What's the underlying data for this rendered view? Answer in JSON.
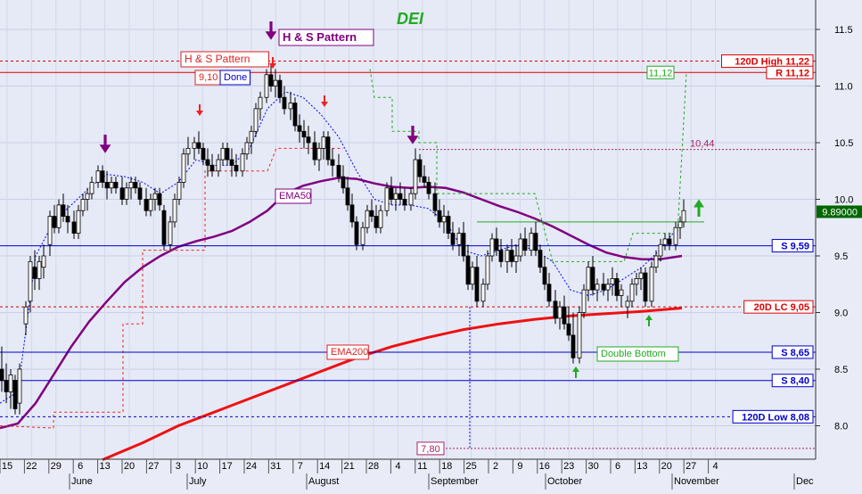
{
  "chart_data": {
    "type": "candlestick",
    "title": "DEI",
    "ylim": [
      7.7,
      11.75
    ],
    "y_ticks": [
      "11.5",
      "11.0",
      "10.5",
      "10.0",
      "9.5",
      "9.0",
      "8.5",
      "8.0"
    ],
    "last_price": "9.89000",
    "x_day_ticks": [
      "15",
      "22",
      "29",
      "6",
      "13",
      "20",
      "27",
      "3",
      "10",
      "17",
      "24",
      "31",
      "7",
      "14",
      "21",
      "28",
      "4",
      "11",
      "18",
      "25",
      "2",
      "9",
      "16",
      "23",
      "30",
      "6",
      "13",
      "20",
      "27",
      "4"
    ],
    "x_month_labels": [
      "June",
      "July",
      "August",
      "September",
      "October",
      "November",
      "Dec"
    ],
    "horizontal_levels": [
      {
        "label": "120D High 11,22",
        "value": 11.22,
        "color": "#dd0000",
        "style": "dashed"
      },
      {
        "label": "R 11,12",
        "value": 11.12,
        "color": "#dd0000",
        "style": "solid"
      },
      {
        "label": "S 9,59",
        "value": 9.59,
        "color": "#0000cc",
        "style": "solid"
      },
      {
        "label": "20D LC 9,05",
        "value": 9.05,
        "color": "#dd0000",
        "style": "dashed"
      },
      {
        "label": "S 8,65",
        "value": 8.65,
        "color": "#0000cc",
        "style": "solid"
      },
      {
        "label": "S 8,40",
        "value": 8.4,
        "color": "#0000cc",
        "style": "solid"
      },
      {
        "label": "120D Low 8,08",
        "value": 8.08,
        "color": "#0000cc",
        "style": "dashed"
      }
    ],
    "level_value_labels": [
      {
        "label": "11,12",
        "value": 11.12
      },
      {
        "label": "10,44",
        "value": 10.44
      },
      {
        "label": "7,80",
        "value": 7.8
      }
    ],
    "annotations": [
      "H & S Pattern",
      "H & S Pattern",
      "9,10",
      "Done",
      "EMA50",
      "EMA200",
      "Double Bottom"
    ],
    "series": [
      {
        "name": "EMA50",
        "color": "#800080",
        "x": [
          0,
          20,
          40,
          60,
          80,
          100,
          120,
          140,
          160,
          180,
          200,
          220,
          240,
          260,
          280,
          300,
          320,
          340,
          360,
          380,
          400,
          420,
          440,
          460,
          480,
          500,
          520,
          540,
          560,
          580,
          600,
          620,
          640,
          660,
          680,
          700,
          720,
          740,
          765
        ],
        "values": [
          7.98,
          8.02,
          8.2,
          8.45,
          8.7,
          8.92,
          9.1,
          9.27,
          9.4,
          9.5,
          9.58,
          9.63,
          9.67,
          9.72,
          9.8,
          9.9,
          10.05,
          10.12,
          10.16,
          10.19,
          10.18,
          10.14,
          10.11,
          10.1,
          10.11,
          10.1,
          10.06,
          10.0,
          9.94,
          9.89,
          9.83,
          9.76,
          9.68,
          9.6,
          9.53,
          9.49,
          9.47,
          9.47,
          9.5
        ]
      },
      {
        "name": "EMA200",
        "color": "#ee1111",
        "x": [
          115,
          160,
          200,
          240,
          280,
          320,
          360,
          400,
          440,
          480,
          520,
          560,
          600,
          640,
          680,
          720,
          765
        ],
        "values": [
          7.7,
          7.85,
          8.0,
          8.12,
          8.24,
          8.36,
          8.48,
          8.6,
          8.7,
          8.78,
          8.85,
          8.9,
          8.94,
          8.97,
          8.99,
          9.01,
          9.04
        ]
      },
      {
        "name": "",
        "color": "#0000ff",
        "style": "dotted",
        "x": [
          0,
          20,
          30,
          40,
          60,
          80,
          100,
          120,
          140,
          160,
          180,
          200,
          220,
          240,
          260,
          280,
          300,
          320,
          340,
          360,
          380,
          400,
          420,
          440,
          460,
          480,
          500,
          520,
          540,
          560,
          580,
          600,
          620,
          640,
          660,
          680,
          700,
          720,
          740,
          760
        ],
        "values": [
          8.2,
          8.3,
          8.9,
          9.5,
          9.8,
          9.95,
          10.1,
          10.22,
          10.2,
          10.15,
          10.05,
          10.15,
          10.35,
          10.3,
          10.3,
          10.45,
          10.8,
          10.95,
          10.9,
          10.75,
          10.55,
          10.25,
          10.0,
          9.95,
          9.95,
          9.92,
          9.8,
          9.55,
          9.5,
          9.55,
          9.6,
          9.55,
          9.45,
          9.2,
          9.15,
          9.2,
          9.3,
          9.4,
          9.55,
          9.75
        ]
      }
    ],
    "candles": [
      [
        0,
        8.5,
        8.7,
        8.3,
        8.4
      ],
      [
        5,
        8.4,
        8.55,
        8.2,
        8.3
      ],
      [
        10,
        8.3,
        8.5,
        8.15,
        8.45
      ],
      [
        15,
        8.4,
        8.45,
        8.1,
        8.15
      ],
      [
        20,
        8.2,
        8.55,
        8.1,
        8.5
      ],
      [
        27,
        8.9,
        9.1,
        8.8,
        9.05
      ],
      [
        32,
        9.1,
        9.5,
        9.0,
        9.45
      ],
      [
        37,
        9.4,
        9.55,
        9.2,
        9.3
      ],
      [
        42,
        9.3,
        9.5,
        9.2,
        9.45
      ],
      [
        47,
        9.4,
        9.6,
        9.3,
        9.5
      ],
      [
        54,
        9.6,
        9.9,
        9.5,
        9.85
      ],
      [
        59,
        9.85,
        9.95,
        9.7,
        9.75
      ],
      [
        64,
        9.75,
        10.0,
        9.7,
        9.95
      ],
      [
        69,
        9.95,
        10.05,
        9.8,
        9.85
      ],
      [
        74,
        9.85,
        9.95,
        9.7,
        9.8
      ],
      [
        81,
        9.8,
        9.9,
        9.65,
        9.7
      ],
      [
        86,
        9.7,
        9.95,
        9.65,
        9.9
      ],
      [
        91,
        9.9,
        10.05,
        9.85,
        10.0
      ],
      [
        96,
        10.0,
        10.1,
        9.9,
        10.05
      ],
      [
        101,
        10.05,
        10.2,
        10.0,
        10.15
      ],
      [
        108,
        10.15,
        10.3,
        10.1,
        10.25
      ],
      [
        113,
        10.25,
        10.3,
        10.1,
        10.15
      ],
      [
        118,
        10.15,
        10.25,
        10.0,
        10.1
      ],
      [
        123,
        10.1,
        10.2,
        10.05,
        10.15
      ],
      [
        128,
        10.15,
        10.2,
        10.05,
        10.1
      ],
      [
        135,
        10.1,
        10.2,
        9.95,
        10.0
      ],
      [
        140,
        10.0,
        10.15,
        9.95,
        10.1
      ],
      [
        145,
        10.1,
        10.2,
        10.0,
        10.15
      ],
      [
        150,
        10.15,
        10.2,
        10.05,
        10.1
      ],
      [
        155,
        10.1,
        10.15,
        9.95,
        10.0
      ],
      [
        162,
        10.0,
        10.1,
        9.85,
        9.9
      ],
      [
        167,
        9.9,
        10.05,
        9.85,
        10.0
      ],
      [
        172,
        10.0,
        10.1,
        9.9,
        10.05
      ],
      [
        177,
        10.05,
        10.1,
        9.9,
        9.95
      ],
      [
        182,
        9.9,
        9.95,
        9.55,
        9.6
      ],
      [
        189,
        9.6,
        9.85,
        9.55,
        9.8
      ],
      [
        194,
        9.8,
        10.05,
        9.75,
        10.0
      ],
      [
        199,
        10.0,
        10.2,
        9.95,
        10.15
      ],
      [
        204,
        10.15,
        10.45,
        10.1,
        10.4
      ],
      [
        209,
        10.4,
        10.55,
        10.3,
        10.45
      ],
      [
        216,
        10.45,
        10.55,
        10.35,
        10.5
      ],
      [
        221,
        10.5,
        10.6,
        10.4,
        10.45
      ],
      [
        226,
        10.45,
        10.5,
        10.3,
        10.35
      ],
      [
        231,
        10.35,
        10.45,
        10.2,
        10.3
      ],
      [
        236,
        10.3,
        10.4,
        10.2,
        10.25
      ],
      [
        243,
        10.25,
        10.4,
        10.2,
        10.35
      ],
      [
        248,
        10.35,
        10.5,
        10.3,
        10.45
      ],
      [
        253,
        10.45,
        10.5,
        10.3,
        10.35
      ],
      [
        258,
        10.35,
        10.45,
        10.2,
        10.3
      ],
      [
        263,
        10.3,
        10.4,
        10.2,
        10.25
      ],
      [
        270,
        10.25,
        10.45,
        10.2,
        10.4
      ],
      [
        275,
        10.4,
        10.55,
        10.35,
        10.5
      ],
      [
        280,
        10.5,
        10.65,
        10.4,
        10.6
      ],
      [
        285,
        10.6,
        10.85,
        10.55,
        10.8
      ],
      [
        290,
        10.8,
        10.95,
        10.7,
        10.9
      ],
      [
        297,
        10.9,
        11.15,
        10.85,
        11.1
      ],
      [
        302,
        11.1,
        11.2,
        10.95,
        11.0
      ],
      [
        307,
        11.0,
        11.15,
        10.9,
        11.05
      ],
      [
        312,
        11.05,
        11.1,
        10.85,
        10.9
      ],
      [
        317,
        10.9,
        11.0,
        10.75,
        10.8
      ],
      [
        324,
        10.8,
        10.95,
        10.7,
        10.85
      ],
      [
        329,
        10.85,
        10.9,
        10.6,
        10.65
      ],
      [
        334,
        10.65,
        10.75,
        10.5,
        10.6
      ],
      [
        339,
        10.6,
        10.7,
        10.45,
        10.55
      ],
      [
        344,
        10.55,
        10.65,
        10.4,
        10.5
      ],
      [
        351,
        10.5,
        10.6,
        10.3,
        10.35
      ],
      [
        356,
        10.35,
        10.5,
        10.25,
        10.45
      ],
      [
        361,
        10.45,
        10.6,
        10.35,
        10.55
      ],
      [
        366,
        10.55,
        10.6,
        10.3,
        10.35
      ],
      [
        371,
        10.35,
        10.45,
        10.2,
        10.3
      ],
      [
        378,
        10.3,
        10.4,
        10.15,
        10.2
      ],
      [
        383,
        10.2,
        10.3,
        10.05,
        10.1
      ],
      [
        388,
        10.1,
        10.2,
        9.9,
        9.95
      ],
      [
        393,
        9.95,
        10.05,
        9.75,
        9.8
      ],
      [
        398,
        9.8,
        9.85,
        9.55,
        9.6
      ],
      [
        405,
        9.6,
        9.8,
        9.55,
        9.75
      ],
      [
        410,
        9.75,
        9.95,
        9.7,
        9.9
      ],
      [
        415,
        9.9,
        10.0,
        9.8,
        9.85
      ],
      [
        420,
        9.85,
        9.95,
        9.7,
        9.75
      ],
      [
        425,
        9.75,
        9.95,
        9.7,
        9.9
      ],
      [
        432,
        9.9,
        10.15,
        9.85,
        10.1
      ],
      [
        437,
        10.1,
        10.2,
        9.95,
        10.0
      ],
      [
        442,
        10.0,
        10.1,
        9.9,
        10.05
      ],
      [
        447,
        10.05,
        10.15,
        9.95,
        10.0
      ],
      [
        452,
        10.0,
        10.1,
        9.9,
        9.95
      ],
      [
        459,
        9.95,
        10.1,
        9.9,
        10.05
      ],
      [
        464,
        10.05,
        10.45,
        10.0,
        10.35
      ],
      [
        469,
        10.35,
        10.4,
        10.15,
        10.2
      ],
      [
        474,
        10.2,
        10.3,
        10.1,
        10.15
      ],
      [
        479,
        10.15,
        10.2,
        10.0,
        10.05
      ],
      [
        486,
        10.05,
        10.15,
        9.85,
        9.9
      ],
      [
        491,
        9.9,
        10.0,
        9.75,
        9.8
      ],
      [
        496,
        9.8,
        9.95,
        9.7,
        9.85
      ],
      [
        501,
        9.85,
        9.9,
        9.65,
        9.7
      ],
      [
        506,
        9.7,
        9.8,
        9.55,
        9.6
      ],
      [
        513,
        9.6,
        9.75,
        9.5,
        9.7
      ],
      [
        518,
        9.7,
        9.8,
        9.45,
        9.5
      ],
      [
        523,
        9.5,
        9.6,
        9.2,
        9.25
      ],
      [
        528,
        9.25,
        9.45,
        9.2,
        9.4
      ],
      [
        533,
        9.4,
        9.5,
        9.05,
        9.1
      ],
      [
        540,
        9.1,
        9.3,
        9.05,
        9.25
      ],
      [
        545,
        9.25,
        9.55,
        9.2,
        9.5
      ],
      [
        550,
        9.5,
        9.7,
        9.45,
        9.65
      ],
      [
        555,
        9.65,
        9.75,
        9.5,
        9.55
      ],
      [
        560,
        9.55,
        9.65,
        9.4,
        9.45
      ],
      [
        567,
        9.45,
        9.6,
        9.35,
        9.55
      ],
      [
        572,
        9.55,
        9.65,
        9.4,
        9.45
      ],
      [
        577,
        9.45,
        9.6,
        9.35,
        9.5
      ],
      [
        582,
        9.5,
        9.7,
        9.45,
        9.65
      ],
      [
        587,
        9.65,
        9.75,
        9.5,
        9.55
      ],
      [
        594,
        9.55,
        9.75,
        9.5,
        9.7
      ],
      [
        599,
        9.7,
        9.8,
        9.5,
        9.55
      ],
      [
        604,
        9.55,
        9.6,
        9.35,
        9.4
      ],
      [
        609,
        9.4,
        9.5,
        9.2,
        9.25
      ],
      [
        614,
        9.25,
        9.35,
        9.05,
        9.1
      ],
      [
        621,
        9.1,
        9.2,
        8.9,
        8.95
      ],
      [
        626,
        8.95,
        9.1,
        8.85,
        9.05
      ],
      [
        631,
        9.05,
        9.15,
        8.85,
        8.9
      ],
      [
        636,
        8.9,
        9.05,
        8.75,
        8.8
      ],
      [
        641,
        8.8,
        9.0,
        8.55,
        8.6
      ],
      [
        648,
        8.6,
        9.05,
        8.55,
        9.0
      ],
      [
        653,
        9.0,
        9.25,
        8.95,
        9.2
      ],
      [
        658,
        9.2,
        9.45,
        9.1,
        9.4
      ],
      [
        663,
        9.4,
        9.5,
        9.15,
        9.2
      ],
      [
        668,
        9.2,
        9.3,
        9.1,
        9.25
      ],
      [
        675,
        9.25,
        9.35,
        9.15,
        9.2
      ],
      [
        680,
        9.2,
        9.3,
        9.1,
        9.25
      ],
      [
        685,
        9.25,
        9.4,
        9.15,
        9.3
      ],
      [
        690,
        9.3,
        9.35,
        9.1,
        9.15
      ],
      [
        695,
        9.15,
        9.25,
        9.05,
        9.2
      ],
      [
        702,
        9.05,
        9.15,
        8.95,
        9.1
      ],
      [
        707,
        9.1,
        9.3,
        9.05,
        9.25
      ],
      [
        712,
        9.25,
        9.35,
        9.15,
        9.3
      ],
      [
        717,
        9.3,
        9.4,
        9.2,
        9.35
      ],
      [
        722,
        9.35,
        9.4,
        9.05,
        9.1
      ],
      [
        729,
        9.1,
        9.45,
        9.05,
        9.4
      ],
      [
        734,
        9.4,
        9.55,
        9.35,
        9.5
      ],
      [
        739,
        9.5,
        9.65,
        9.45,
        9.6
      ],
      [
        744,
        9.6,
        9.7,
        9.55,
        9.65
      ],
      [
        749,
        9.65,
        9.7,
        9.55,
        9.6
      ],
      [
        756,
        9.6,
        9.8,
        9.55,
        9.75
      ],
      [
        761,
        9.75,
        9.85,
        9.65,
        9.8
      ],
      [
        765,
        9.8,
        10.0,
        9.75,
        9.9
      ]
    ]
  }
}
